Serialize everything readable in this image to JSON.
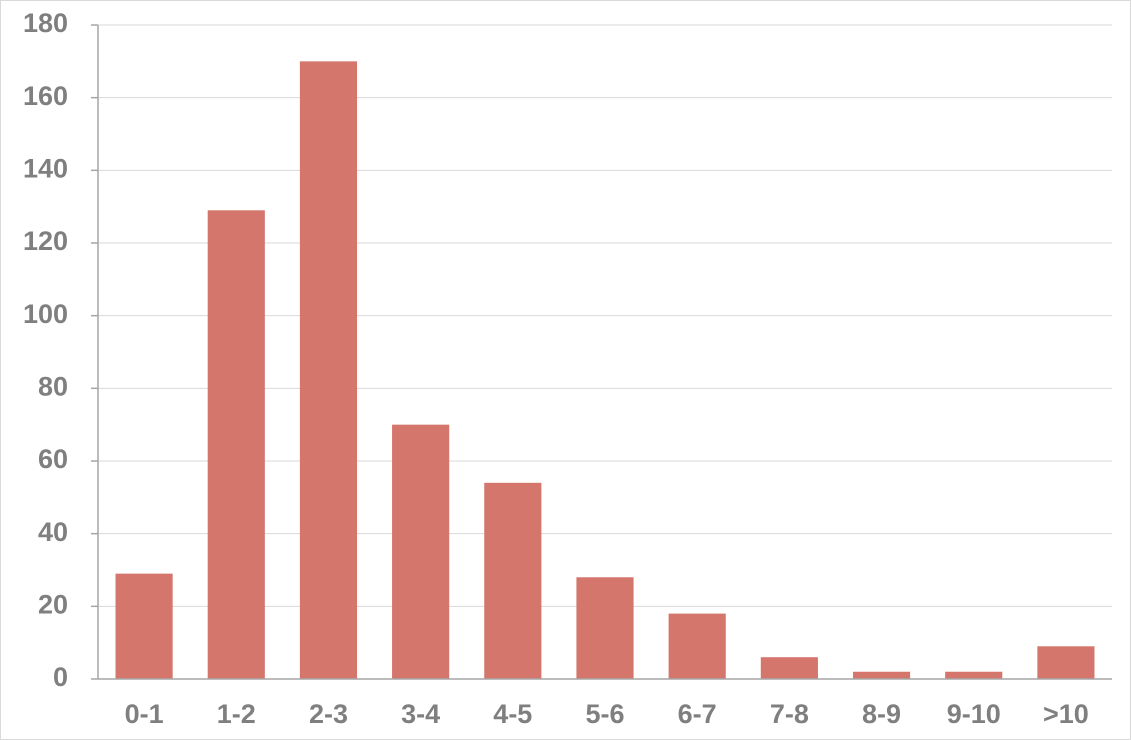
{
  "chart_data": {
    "type": "bar",
    "categories": [
      "0-1",
      "1-2",
      "2-3",
      "3-4",
      "4-5",
      "5-6",
      "6-7",
      "7-8",
      "8-9",
      "9-10",
      ">10"
    ],
    "values": [
      29,
      129,
      170,
      70,
      54,
      28,
      18,
      6,
      2,
      2,
      9
    ],
    "color": "#d4766c",
    "ylim": [
      0,
      180
    ],
    "yticks": [
      0,
      20,
      40,
      60,
      80,
      100,
      120,
      140,
      160,
      180
    ],
    "grid": true
  }
}
